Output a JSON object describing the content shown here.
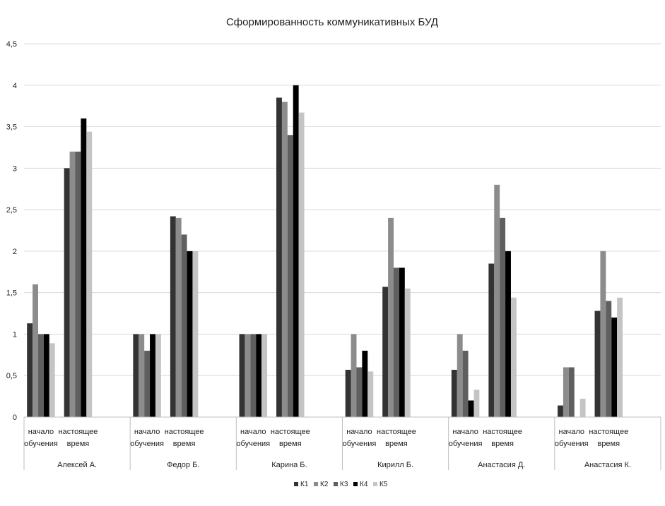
{
  "chart_data": {
    "type": "bar",
    "title": "Сформированность коммуникативных БУД",
    "xlabel": "",
    "ylabel": "",
    "ylim": [
      0,
      4.5
    ],
    "yticks": [
      "0",
      "0,5",
      "1",
      "1,5",
      "2",
      "2,5",
      "3",
      "3,5",
      "4",
      "4,5"
    ],
    "grid": true,
    "legend_position": "bottom",
    "groups": [
      "Алексей А.",
      "Федор Б.",
      "Карина Б.",
      "Кирилл Б.",
      "Анастасия Д.",
      "Анастасия К."
    ],
    "subcategories": [
      [
        "начало",
        "обучения"
      ],
      [
        "настоящее",
        "время"
      ]
    ],
    "series": [
      {
        "name": "К1",
        "color": "#333333",
        "values": [
          1.13,
          3.0,
          1.0,
          2.42,
          1.0,
          3.85,
          0.57,
          1.57,
          0.57,
          1.85,
          0.14,
          1.28
        ]
      },
      {
        "name": "К2",
        "color": "#8c8c8c",
        "values": [
          1.6,
          3.2,
          1.0,
          2.4,
          1.0,
          3.8,
          1.0,
          2.4,
          1.0,
          2.8,
          0.6,
          2.0
        ]
      },
      {
        "name": "К3",
        "color": "#5f5f5f",
        "values": [
          1.0,
          3.2,
          0.8,
          2.2,
          1.0,
          3.4,
          0.6,
          1.8,
          0.8,
          2.4,
          0.6,
          1.4
        ]
      },
      {
        "name": "К4",
        "color": "#000000",
        "values": [
          1.0,
          3.6,
          1.0,
          2.0,
          1.0,
          4.0,
          0.8,
          1.8,
          0.2,
          2.0,
          0.0,
          1.2
        ]
      },
      {
        "name": "К5",
        "color": "#c4c4c4",
        "values": [
          0.89,
          3.44,
          1.0,
          2.0,
          1.0,
          3.67,
          0.55,
          1.55,
          0.33,
          1.44,
          0.22,
          1.44
        ]
      }
    ]
  }
}
